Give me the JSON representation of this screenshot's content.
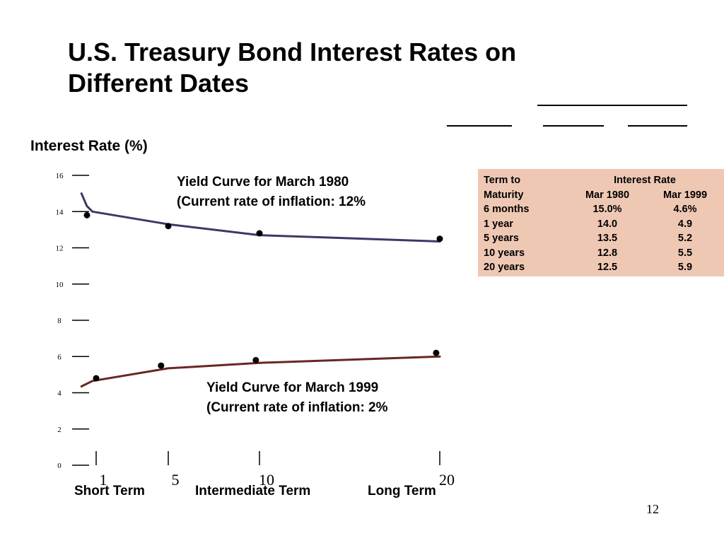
{
  "slide": {
    "title_lines": [
      "U.S. Treasury Bond Interest Rates on",
      "Different Dates"
    ],
    "page_number": "12"
  },
  "chart_data": {
    "type": "line",
    "title": "U.S. Treasury Bond Interest Rates on Different Dates",
    "ylabel": "Interest Rate (%)",
    "xlabel": "",
    "ylim": [
      0,
      16
    ],
    "y_ticks": [
      "0",
      "2",
      "4",
      "6",
      "8",
      "10",
      "12",
      "14",
      "16"
    ],
    "x_ticks": [
      "1",
      "5",
      "10",
      "20"
    ],
    "x_tick_values": [
      1,
      5,
      10,
      20
    ],
    "term_labels": [
      "Short Term",
      "Intermediate Term",
      "Long Term"
    ],
    "grid": false,
    "series": [
      {
        "color": "#3a3a68",
        "annotation": [
          "Yield Curve for March 1980",
          "(Current rate of inflation: 12%"
        ],
        "points": [
          {
            "x": 0.5,
            "y": 13.8
          },
          {
            "x": 5,
            "y": 13.2
          },
          {
            "x": 10,
            "y": 12.8
          },
          {
            "x": 20,
            "y": 12.5
          }
        ],
        "curve": [
          {
            "x": 0.2,
            "y": 15.0
          },
          {
            "x": 0.5,
            "y": 14.3
          },
          {
            "x": 0.8,
            "y": 14.0
          },
          {
            "x": 5,
            "y": 13.3
          },
          {
            "x": 10,
            "y": 12.7
          },
          {
            "x": 20,
            "y": 12.35
          }
        ]
      },
      {
        "color": "#6a2622",
        "annotation": [
          "Yield Curve for March 1999",
          "(Current rate of inflation: 2%"
        ],
        "points": [
          {
            "x": 1,
            "y": 4.8
          },
          {
            "x": 4.6,
            "y": 5.5
          },
          {
            "x": 9.8,
            "y": 5.8
          },
          {
            "x": 19.8,
            "y": 6.2
          }
        ],
        "curve": [
          {
            "x": 0.2,
            "y": 4.35
          },
          {
            "x": 0.8,
            "y": 4.65
          },
          {
            "x": 5,
            "y": 5.35
          },
          {
            "x": 10,
            "y": 5.65
          },
          {
            "x": 20,
            "y": 6.0
          }
        ]
      }
    ]
  },
  "rate_table": {
    "header1": [
      "Term to",
      "Interest Rate"
    ],
    "header2": [
      "Maturity",
      "Mar 1980",
      "Mar 1999"
    ],
    "rows": [
      [
        "6 months",
        "15.0%",
        "4.6%"
      ],
      [
        "1 year",
        "14.0",
        "4.9"
      ],
      [
        "5 years",
        "13.5",
        "5.2"
      ],
      [
        "10 years",
        "12.8",
        "5.5"
      ],
      [
        "20 years",
        "12.5",
        "5.9"
      ]
    ],
    "background": "#efc8b4"
  }
}
